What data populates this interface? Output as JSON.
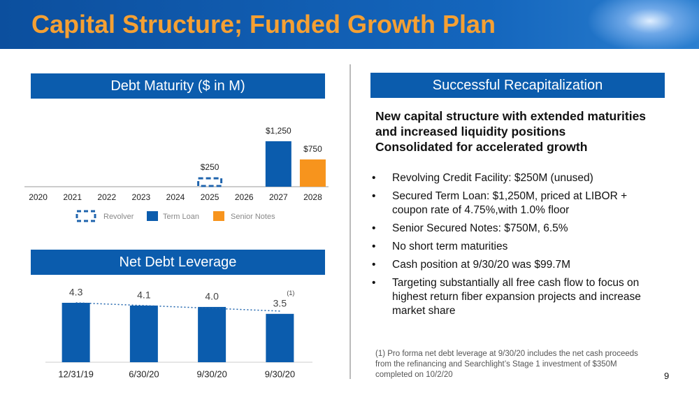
{
  "title": "Capital Structure; Funded Growth Plan",
  "chart_data": [
    {
      "type": "bar",
      "title": "Debt Maturity ($ in M)",
      "categories": [
        "2020",
        "2021",
        "2022",
        "2023",
        "2024",
        "2025",
        "2026",
        "2027",
        "2028"
      ],
      "series": [
        {
          "name": "Revolver",
          "color": "#1f64ad",
          "dashed": true,
          "values": [
            null,
            null,
            null,
            null,
            null,
            250,
            null,
            null,
            null
          ],
          "value_labels": [
            null,
            null,
            null,
            null,
            null,
            "$250",
            null,
            null,
            null
          ]
        },
        {
          "name": "Term Loan",
          "color": "#0b5cad",
          "dashed": false,
          "values": [
            null,
            null,
            null,
            null,
            null,
            null,
            null,
            1250,
            null
          ],
          "value_labels": [
            null,
            null,
            null,
            null,
            null,
            null,
            null,
            "$1,250",
            null
          ]
        },
        {
          "name": "Senior Notes",
          "color": "#f7941d",
          "dashed": false,
          "values": [
            null,
            null,
            null,
            null,
            null,
            null,
            null,
            null,
            750
          ],
          "value_labels": [
            null,
            null,
            null,
            null,
            null,
            null,
            null,
            null,
            "$750"
          ]
        }
      ]
    },
    {
      "type": "bar",
      "title": "Net Debt Leverage",
      "categories": [
        "12/31/19",
        "6/30/20",
        "9/30/20",
        "9/30/20"
      ],
      "values": [
        4.3,
        4.1,
        4.0,
        3.5
      ],
      "value_labels": [
        "4.3",
        "4.1",
        "4.0",
        "3.5"
      ],
      "color": "#0b5cad",
      "trendline": true,
      "annotation": "(1)"
    }
  ],
  "recapitalization": {
    "header": "Successful Recapitalization",
    "headline": [
      "New capital structure with extended maturities and increased liquidity positions",
      "Consolidated for accelerated growth"
    ],
    "bullets": [
      "Revolving Credit Facility: $250M (unused)",
      "Secured Term Loan: $1,250M, priced at LIBOR + coupon rate of 4.75%,with 1.0% floor",
      "Senior Secured Notes: $750M, 6.5%",
      "No short term maturities",
      "Cash position at 9/30/20 was $99.7M",
      "Targeting substantially all free cash flow to focus on highest return fiber expansion projects and increase market share"
    ]
  },
  "footnote": "(1) Pro forma net debt leverage at 9/30/20 includes the net cash proceeds from the refinancing and Searchlight’s Stage 1 investment of $350M completed on 10/2/20",
  "page_number": "9"
}
